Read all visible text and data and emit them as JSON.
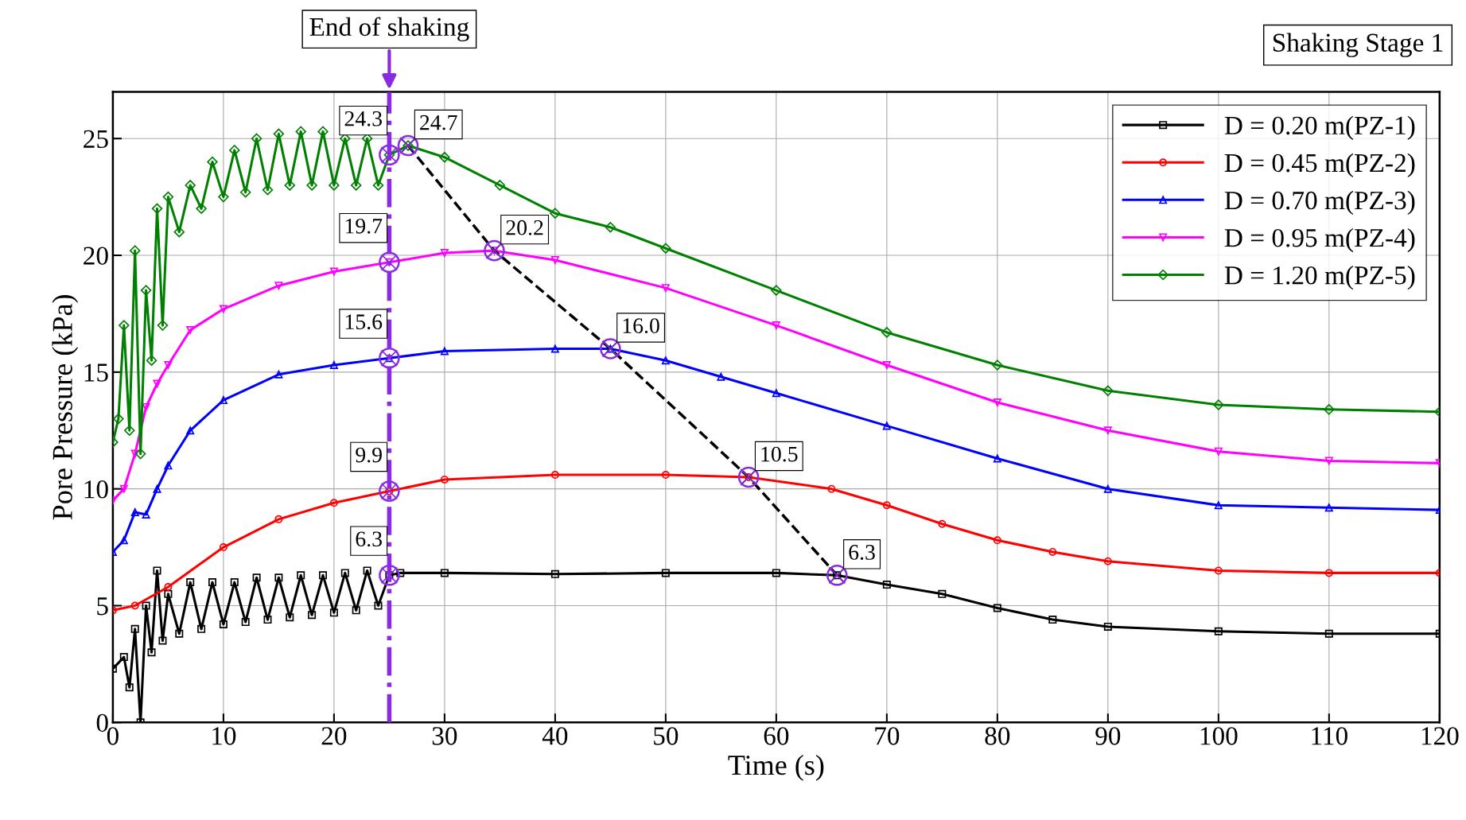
{
  "chart_data": {
    "type": "line",
    "xlabel": "Time (s)",
    "ylabel": "Pore Pressure (kPa)",
    "xlim": [
      0,
      120
    ],
    "ylim": [
      0,
      27
    ],
    "xticks": [
      0,
      10,
      20,
      30,
      40,
      50,
      60,
      70,
      80,
      90,
      100,
      110,
      120
    ],
    "yticks": [
      0,
      5,
      10,
      15,
      20,
      25
    ],
    "grid": true,
    "legend": "top right",
    "line_style": "solid",
    "series": [
      {
        "name": "D = 0.20 m(PZ-1)",
        "color": "#000000",
        "marker": "square",
        "x": [
          0,
          1,
          1.5,
          2,
          2.5,
          3,
          3.5,
          4,
          4.5,
          5,
          6,
          7,
          8,
          9,
          10,
          11,
          12,
          13,
          14,
          15,
          16,
          17,
          18,
          19,
          20,
          21,
          22,
          23,
          24,
          25,
          26,
          30,
          40,
          50,
          60,
          65.5,
          70,
          75,
          80,
          85,
          90,
          100,
          110,
          120
        ],
        "values": [
          2.3,
          2.8,
          1.5,
          4,
          0,
          5,
          3,
          6.5,
          3.5,
          5.5,
          3.8,
          6,
          4,
          6,
          4.2,
          6,
          4.3,
          6.2,
          4.4,
          6.2,
          4.5,
          6.3,
          4.6,
          6.3,
          4.7,
          6.4,
          4.8,
          6.5,
          5,
          6.3,
          6.4,
          6.4,
          6.35,
          6.4,
          6.4,
          6.3,
          5.9,
          5.5,
          4.9,
          4.4,
          4.1,
          3.9,
          3.8,
          3.8
        ]
      },
      {
        "name": "D = 0.45 m(PZ-2)",
        "color": "#ff0000",
        "marker": "circle",
        "x": [
          0,
          2,
          5,
          10,
          15,
          20,
          25,
          30,
          40,
          50,
          57.5,
          65,
          70,
          75,
          80,
          85,
          90,
          100,
          110,
          120
        ],
        "values": [
          4.8,
          5.0,
          5.8,
          7.5,
          8.7,
          9.4,
          9.9,
          10.4,
          10.6,
          10.6,
          10.5,
          10.0,
          9.3,
          8.5,
          7.8,
          7.3,
          6.9,
          6.5,
          6.4,
          6.4
        ]
      },
      {
        "name": "D = 0.70 m(PZ-3)",
        "color": "#0000ff",
        "marker": "triangle",
        "x": [
          0,
          1,
          2,
          3,
          4,
          5,
          7,
          10,
          15,
          20,
          25,
          30,
          40,
          45,
          50,
          55,
          60,
          70,
          80,
          90,
          100,
          110,
          120
        ],
        "values": [
          7.3,
          7.8,
          9,
          8.9,
          10,
          11,
          12.5,
          13.8,
          14.9,
          15.3,
          15.6,
          15.9,
          16.0,
          16.0,
          15.5,
          14.8,
          14.1,
          12.7,
          11.3,
          10.0,
          9.3,
          9.2,
          9.1
        ]
      },
      {
        "name": "D = 0.95 m(PZ-4)",
        "color": "#ff00ff",
        "marker": "triangle_down",
        "x": [
          0,
          1,
          2,
          3,
          4,
          5,
          7,
          10,
          15,
          20,
          25,
          30,
          34.5,
          40,
          50,
          60,
          70,
          80,
          90,
          100,
          110,
          120
        ],
        "values": [
          9.5,
          10,
          11.5,
          13.5,
          14.5,
          15.3,
          16.8,
          17.7,
          18.7,
          19.3,
          19.7,
          20.1,
          20.2,
          19.8,
          18.6,
          17.0,
          15.3,
          13.7,
          12.5,
          11.6,
          11.2,
          11.1
        ]
      },
      {
        "name": "D = 1.20 m(PZ-5)",
        "color": "#008000",
        "marker": "diamond",
        "x": [
          0,
          0.5,
          1,
          1.5,
          2,
          2.5,
          3,
          3.5,
          4,
          4.5,
          5,
          6,
          7,
          8,
          9,
          10,
          11,
          12,
          13,
          14,
          15,
          16,
          17,
          18,
          19,
          20,
          21,
          22,
          23,
          24,
          25,
          26.7,
          30,
          35,
          40,
          45,
          50,
          60,
          70,
          80,
          90,
          100,
          110,
          120
        ],
        "values": [
          12.0,
          13,
          17,
          12.5,
          20.2,
          11.5,
          18.5,
          15.5,
          22,
          17,
          22.5,
          21,
          23,
          22,
          24,
          22.5,
          24.5,
          22.7,
          25,
          22.8,
          25.2,
          23,
          25.3,
          23,
          25.3,
          23,
          25,
          23,
          25,
          23,
          24.3,
          24.7,
          24.2,
          23,
          21.8,
          21.2,
          20.3,
          18.5,
          16.7,
          15.3,
          14.2,
          13.6,
          13.4,
          13.3
        ]
      },
      {
        "type": "line",
        "color": "#000000",
        "line_style": "dashed",
        "marker": "cross",
        "x": [
          26.7,
          34.5,
          45,
          57.5,
          65.5
        ],
        "values": [
          24.7,
          20.2,
          16.0,
          10.5,
          6.3
        ]
      },
      {
        "type": "scatter",
        "color": "#8a2be2",
        "marker": "circle",
        "x": [
          25,
          26.7,
          25,
          34.5,
          25,
          45,
          25,
          57.5,
          25,
          65.5
        ],
        "values": [
          24.3,
          24.7,
          19.7,
          20.2,
          15.6,
          16.0,
          9.9,
          10.5,
          6.3,
          6.3
        ]
      }
    ],
    "ref_lines": [
      {
        "axis": "x",
        "value": 25,
        "label": "End of shaking",
        "color": "#8a2be2",
        "line_style": "dashdot"
      }
    ],
    "annotations": [
      {
        "text": "24.3",
        "x": 25,
        "y": 24.3
      },
      {
        "text": "24.7",
        "x": 26.7,
        "y": 24.7
      },
      {
        "text": "19.7",
        "x": 25,
        "y": 19.7
      },
      {
        "text": "20.2",
        "x": 34.5,
        "y": 20.2
      },
      {
        "text": "15.6",
        "x": 25,
        "y": 15.6
      },
      {
        "text": "16.0",
        "x": 45,
        "y": 16.0
      },
      {
        "text": "9.9",
        "x": 25,
        "y": 9.9
      },
      {
        "text": "10.5",
        "x": 57.5,
        "y": 10.5
      },
      {
        "text": "6.3",
        "x": 25,
        "y": 6.3
      },
      {
        "text": "6.3",
        "x": 65.5,
        "y": 6.3
      },
      "Shaking Stage 1"
    ]
  }
}
